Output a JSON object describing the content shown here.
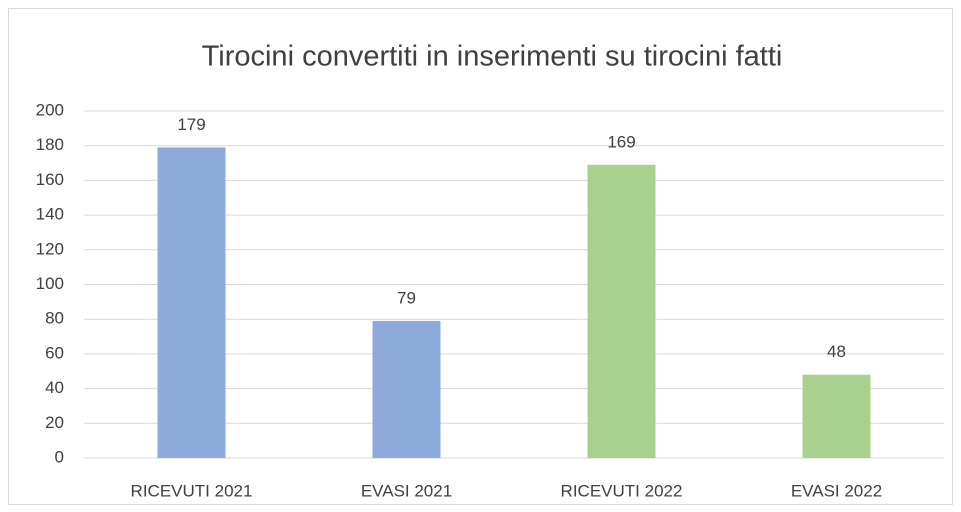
{
  "chart_data": {
    "type": "bar",
    "title": "Tirocini convertiti in inserimenti su tirocini fatti",
    "categories": [
      "RICEVUTI 2021",
      "EVASI 2021",
      "RICEVUTI 2022",
      "EVASI 2022"
    ],
    "values": [
      179,
      79,
      169,
      48
    ],
    "colors": [
      "#8eaadb",
      "#8eaadb",
      "#a9d18e",
      "#a9d18e"
    ],
    "ylim": [
      0,
      200
    ],
    "yticks": [
      0,
      20,
      40,
      60,
      80,
      100,
      120,
      140,
      160,
      180,
      200
    ],
    "grid": true
  }
}
